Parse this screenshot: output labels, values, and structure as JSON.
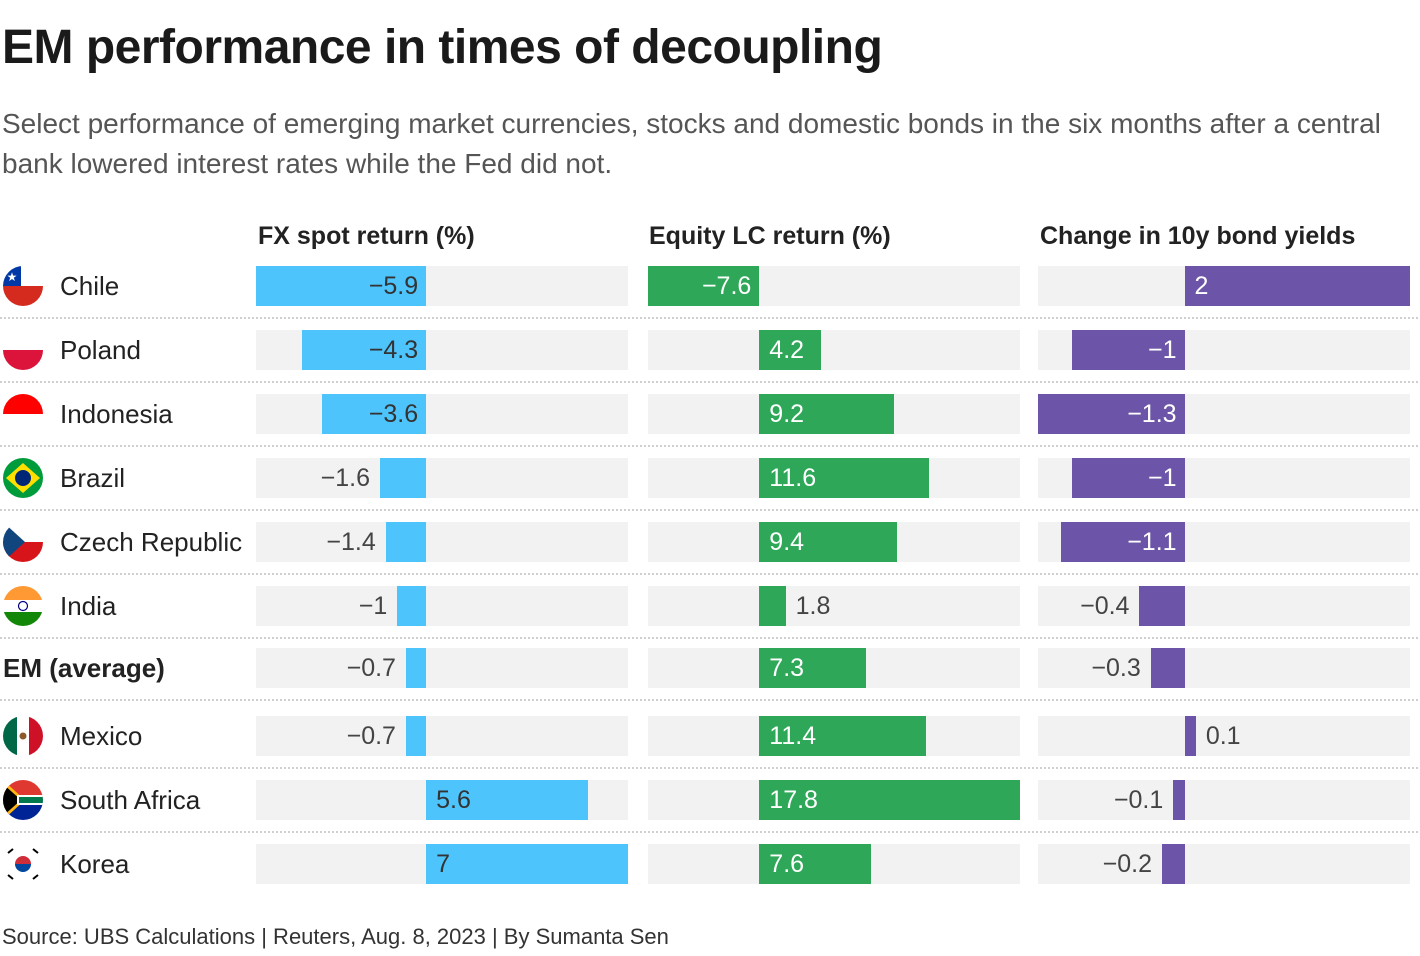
{
  "title": "EM performance in times of decoupling",
  "subtitle": "Select performance of emerging market currencies, stocks and domestic bonds in the six months after a central bank lowered interest rates while the Fed did not.",
  "source": "Source: UBS Calculations | Reuters, Aug. 8, 2023 | By Sumanta Sen",
  "colors": {
    "fx": "#4dc4fb",
    "equity": "#2ea858",
    "bond": "#6c55a8",
    "track": "#f2f2f2"
  },
  "chart_data": {
    "type": "bar",
    "orientation": "horizontal",
    "categories": [
      "Chile",
      "Poland",
      "Indonesia",
      "Brazil",
      "Czech Republic",
      "India",
      "EM (average)",
      "Mexico",
      "South Africa",
      "Korea"
    ],
    "flag_icons": [
      "chile-flag-icon",
      "poland-flag-icon",
      "indonesia-flag-icon",
      "brazil-flag-icon",
      "czech-flag-icon",
      "india-flag-icon",
      "",
      "mexico-flag-icon",
      "south-africa-flag-icon",
      "korea-flag-icon"
    ],
    "series": [
      {
        "name": "FX spot return (%)",
        "values": [
          -5.9,
          -4.3,
          -3.6,
          -1.6,
          -1.4,
          -1,
          -0.7,
          -0.7,
          5.6,
          7
        ],
        "labels": [
          "−5.9",
          "−4.3",
          "−3.6",
          "−1.6",
          "−1.4",
          "−1",
          "−0.7",
          "−0.7",
          "5.6",
          "7"
        ],
        "xlim": [
          -5.9,
          7
        ]
      },
      {
        "name": "Equity LC return (%)",
        "values": [
          -7.6,
          4.2,
          9.2,
          11.6,
          9.4,
          1.8,
          7.3,
          11.4,
          17.8,
          7.6
        ],
        "labels": [
          "−7.6",
          "4.2",
          "9.2",
          "11.6",
          "9.4",
          "1.8",
          "7.3",
          "11.4",
          "17.8",
          "7.6"
        ],
        "xlim": [
          -7.6,
          17.8
        ]
      },
      {
        "name": "Change in 10y bond yields",
        "values": [
          2,
          -1,
          -1.3,
          -1,
          -1.1,
          -0.4,
          -0.3,
          0.1,
          -0.1,
          -0.2
        ],
        "labels": [
          "2",
          "−1",
          "−1.3",
          "−1",
          "−1.1",
          "−0.4",
          "−0.3",
          "0.1",
          "−0.1",
          "−0.2"
        ],
        "xlim": [
          -1.3,
          2
        ]
      }
    ]
  }
}
